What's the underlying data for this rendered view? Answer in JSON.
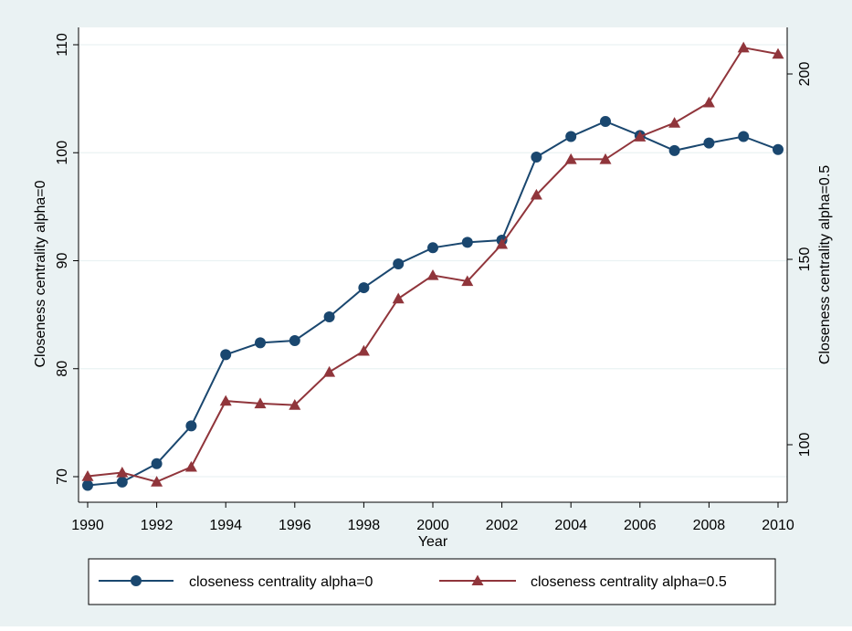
{
  "chart_data": {
    "type": "line",
    "xlabel": "Year",
    "ylabel_left": "Closeness centrality alpha=0",
    "ylabel_right": "Closeness centrality alpha=0.5",
    "x": [
      1990,
      1991,
      1992,
      1993,
      1994,
      1995,
      1996,
      1997,
      1998,
      1999,
      2000,
      2001,
      2002,
      2003,
      2004,
      2005,
      2006,
      2007,
      2008,
      2009,
      2010
    ],
    "x_ticks": [
      "1990",
      "1992",
      "1994",
      "1996",
      "1998",
      "2000",
      "2002",
      "2004",
      "2006",
      "2008",
      "2010"
    ],
    "xlim": [
      1990,
      2010
    ],
    "ylim_left": [
      69,
      110
    ],
    "yticks_left": [
      "70",
      "80",
      "90",
      "100",
      "110"
    ],
    "ylim_right": [
      89,
      208
    ],
    "yticks_right": [
      "100",
      "150",
      "200"
    ],
    "grid": true,
    "legend_position": "bottom",
    "series": [
      {
        "name": "closeness centrality alpha=0",
        "axis": "left",
        "color": "#1a476f",
        "marker": "circle",
        "values": [
          69.2,
          69.5,
          71.2,
          74.7,
          81.3,
          82.4,
          82.6,
          84.8,
          87.5,
          89.7,
          91.2,
          91.7,
          91.9,
          99.6,
          101.5,
          102.9,
          101.6,
          100.2,
          100.9,
          101.5,
          100.3
        ]
      },
      {
        "name": "closeness centrality alpha=0.5",
        "axis": "right",
        "color": "#90353b",
        "marker": "triangle",
        "values": [
          91.5,
          92.5,
          90.0,
          94.0,
          111.8,
          111.1,
          110.7,
          119.6,
          125.3,
          139.4,
          145.7,
          144.1,
          154.1,
          167.4,
          177.0,
          177.0,
          183.1,
          186.8,
          192.3,
          207.1,
          205.4
        ]
      }
    ]
  },
  "colors": {
    "outer_background": "#eaf2f3",
    "plot_background": "#ffffff",
    "grid": "#eaf2f3"
  }
}
